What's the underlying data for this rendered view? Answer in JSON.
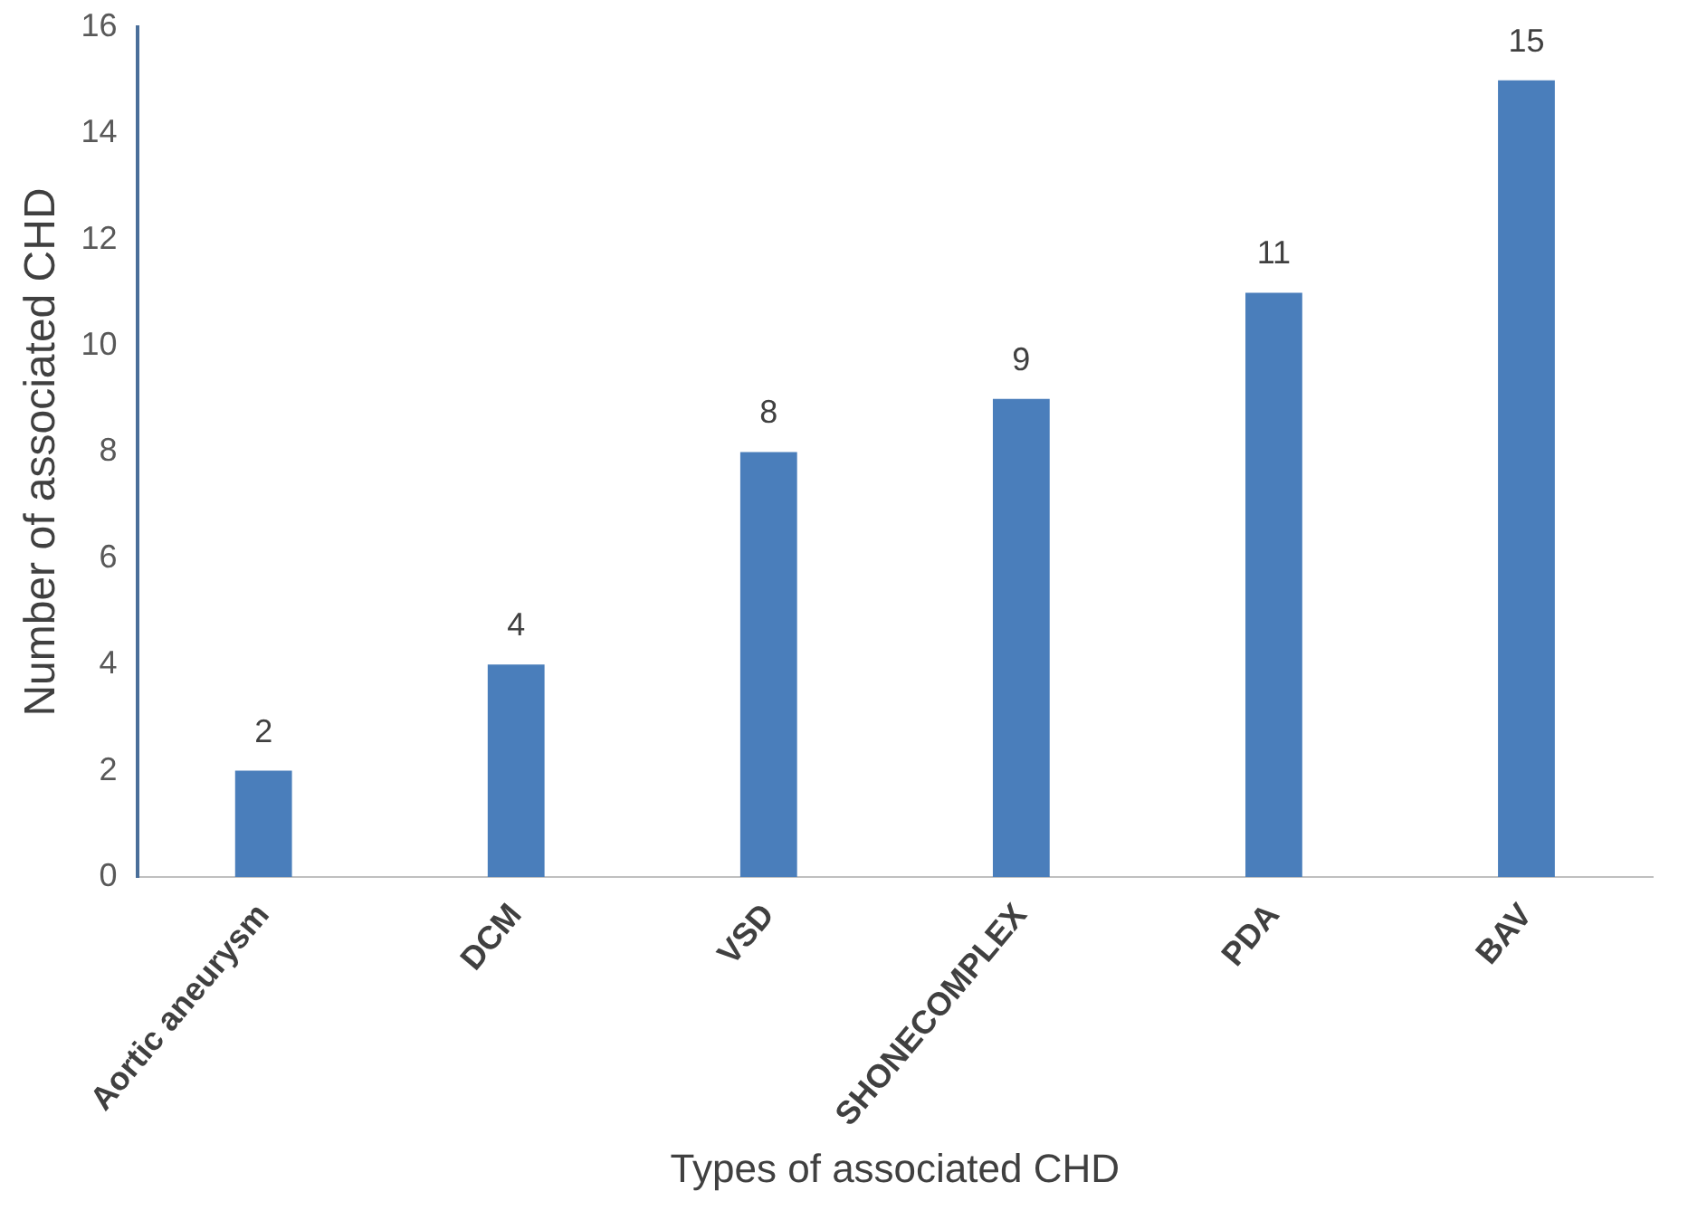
{
  "chart_data": {
    "type": "bar",
    "xlabel": "Types of associated CHD",
    "ylabel": "Number of associated CHD",
    "categories": [
      "Aortic aneurysm",
      "DCM",
      "VSD",
      "SHONECOMPLEX",
      "PDA",
      "BAV"
    ],
    "values": [
      2,
      4,
      8,
      9,
      11,
      15
    ],
    "color": "#4a7ebb",
    "ylim": [
      0,
      16
    ],
    "yticks": [
      0,
      2,
      4,
      6,
      8,
      10,
      12,
      14,
      16
    ],
    "grid": false,
    "legend": false,
    "data_labels": true
  }
}
